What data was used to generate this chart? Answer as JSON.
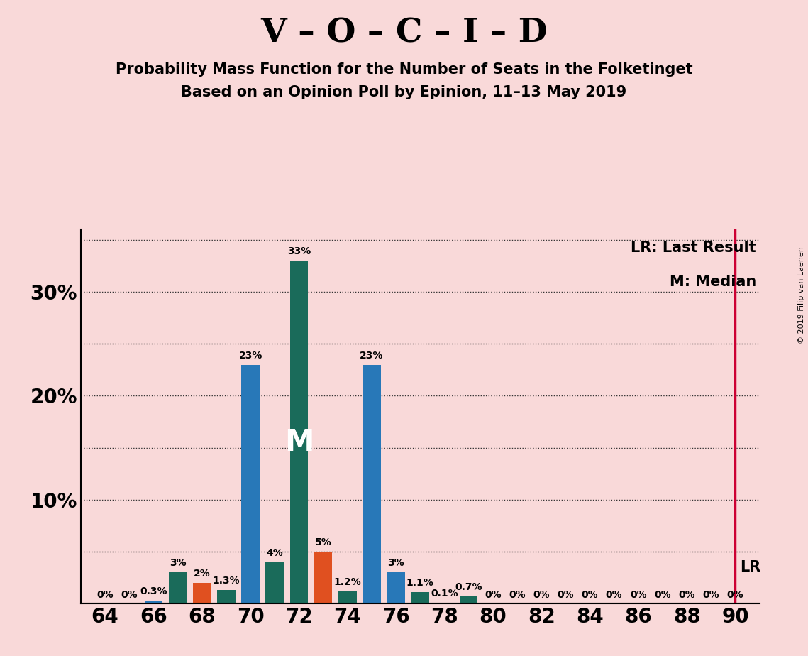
{
  "title_main": "V – O – C – I – D",
  "title_sub1": "Probability Mass Function for the Number of Seats in the Folketinget",
  "title_sub2": "Based on an Opinion Poll by Epinion, 11–13 May 2019",
  "copyright": "© 2019 Filip van Laenen",
  "background_color": "#f9d9d9",
  "bar_data": [
    {
      "seat": 64,
      "value": 0.0,
      "color": "#2878b8"
    },
    {
      "seat": 65,
      "value": 0.0,
      "color": "#2878b8"
    },
    {
      "seat": 66,
      "value": 0.3,
      "color": "#2878b8"
    },
    {
      "seat": 67,
      "value": 3.0,
      "color": "#1a6b5a"
    },
    {
      "seat": 68,
      "value": 2.0,
      "color": "#e05020"
    },
    {
      "seat": 69,
      "value": 1.3,
      "color": "#1a6b5a"
    },
    {
      "seat": 70,
      "value": 23.0,
      "color": "#2878b8"
    },
    {
      "seat": 71,
      "value": 4.0,
      "color": "#1a6b5a"
    },
    {
      "seat": 72,
      "value": 33.0,
      "color": "#1a6b5a"
    },
    {
      "seat": 73,
      "value": 5.0,
      "color": "#e05020"
    },
    {
      "seat": 74,
      "value": 1.2,
      "color": "#1a6b5a"
    },
    {
      "seat": 75,
      "value": 23.0,
      "color": "#2878b8"
    },
    {
      "seat": 76,
      "value": 3.0,
      "color": "#2878b8"
    },
    {
      "seat": 77,
      "value": 1.1,
      "color": "#1a6b5a"
    },
    {
      "seat": 78,
      "value": 0.1,
      "color": "#2878b8"
    },
    {
      "seat": 79,
      "value": 0.7,
      "color": "#1a6b5a"
    },
    {
      "seat": 80,
      "value": 0.0,
      "color": "#2878b8"
    },
    {
      "seat": 81,
      "value": 0.0,
      "color": "#2878b8"
    },
    {
      "seat": 82,
      "value": 0.0,
      "color": "#2878b8"
    },
    {
      "seat": 83,
      "value": 0.0,
      "color": "#2878b8"
    },
    {
      "seat": 84,
      "value": 0.0,
      "color": "#2878b8"
    },
    {
      "seat": 85,
      "value": 0.0,
      "color": "#2878b8"
    },
    {
      "seat": 86,
      "value": 0.0,
      "color": "#2878b8"
    },
    {
      "seat": 87,
      "value": 0.0,
      "color": "#2878b8"
    },
    {
      "seat": 88,
      "value": 0.0,
      "color": "#2878b8"
    },
    {
      "seat": 89,
      "value": 0.0,
      "color": "#2878b8"
    },
    {
      "seat": 90,
      "value": 0.0,
      "color": "#2878b8"
    }
  ],
  "median_seat": 72,
  "median_label": "M",
  "median_label_color": "#ffffff",
  "lr_seat": 90,
  "lr_color": "#cc0033",
  "lr_label": "LR",
  "ymax": 36,
  "xmin": 63,
  "xmax": 91,
  "grid_color": "#333333",
  "bar_width": 0.75,
  "label_fontsize": 10,
  "title_main_fontsize": 34,
  "title_sub_fontsize": 15,
  "axis_tick_fontsize": 20,
  "ytick_major": [
    10,
    20,
    30
  ],
  "ytick_minor": [
    5,
    10,
    15,
    20,
    25,
    30,
    35
  ],
  "legend_fontsize": 15,
  "copyright_fontsize": 8
}
